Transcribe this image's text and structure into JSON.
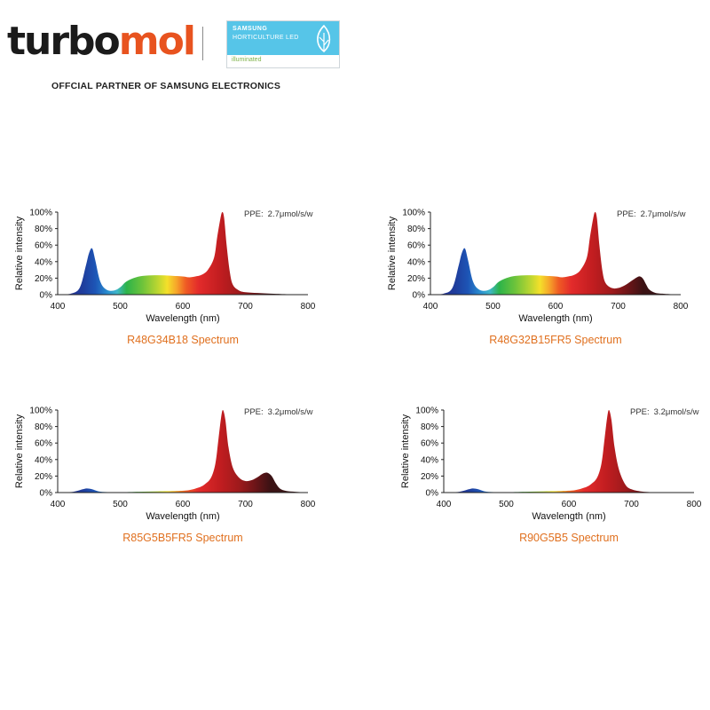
{
  "brand": {
    "name_part1": "turbo",
    "name_part2": "mol",
    "partner_text": "OFFCIAL PARTNER OF SAMSUNG ELECTRONICS"
  },
  "badge": {
    "line1": "SAMSUNG",
    "line2": "HORTICULTURE LED",
    "line3": "illuminated"
  },
  "colors": {
    "brand_dark": "#1b1b1b",
    "brand_orange": "#e8531f",
    "caption": "#e0701f",
    "badge_blue": "#56c5e8"
  },
  "chart_data": [
    {
      "type": "area",
      "caption": "R48G34B18 Spectrum",
      "ppe_label": "PPE:",
      "ppe_value": "2.7μmol/s/w",
      "xlabel": "Wavelength (nm)",
      "ylabel": "Relative intensity",
      "xlim": [
        400,
        800
      ],
      "ylim": [
        0,
        100
      ],
      "x_ticks": [
        "400",
        "500",
        "600",
        "700",
        "800"
      ],
      "y_ticks": [
        "0%",
        "20%",
        "40%",
        "60%",
        "80%",
        "100%"
      ],
      "x": [
        400,
        420,
        435,
        445,
        450,
        455,
        460,
        468,
        478,
        490,
        500,
        510,
        525,
        540,
        560,
        580,
        600,
        610,
        620,
        630,
        640,
        650,
        655,
        660,
        663,
        666,
        670,
        675,
        680,
        690,
        700,
        720,
        750,
        800
      ],
      "values": [
        0,
        1,
        8,
        35,
        50,
        56,
        42,
        16,
        6,
        5,
        9,
        16,
        21,
        23,
        23.5,
        23,
        22,
        21,
        22,
        24,
        30,
        45,
        70,
        92,
        100,
        93,
        60,
        28,
        12,
        5,
        3,
        2,
        1,
        0
      ]
    },
    {
      "type": "area",
      "caption": "R48G32B15FR5 Spectrum",
      "ppe_label": "PPE:",
      "ppe_value": "2.7μmol/s/w",
      "xlabel": "Wavelength (nm)",
      "ylabel": "Relative intensity",
      "xlim": [
        400,
        800
      ],
      "ylim": [
        0,
        100
      ],
      "x_ticks": [
        "400",
        "500",
        "600",
        "700",
        "800"
      ],
      "y_ticks": [
        "0%",
        "20%",
        "40%",
        "60%",
        "80%",
        "100%"
      ],
      "x": [
        400,
        420,
        435,
        445,
        450,
        455,
        460,
        468,
        478,
        490,
        500,
        510,
        525,
        540,
        560,
        580,
        600,
        610,
        620,
        630,
        640,
        650,
        655,
        660,
        663,
        666,
        670,
        675,
        680,
        690,
        700,
        710,
        720,
        730,
        735,
        740,
        745,
        750,
        760,
        775,
        800
      ],
      "values": [
        0,
        1,
        8,
        35,
        50,
        56,
        42,
        16,
        6,
        5,
        9,
        16,
        21,
        23,
        23.5,
        23,
        22,
        21,
        22,
        24,
        30,
        45,
        70,
        92,
        100,
        93,
        60,
        28,
        14,
        8,
        8,
        11,
        16,
        21,
        22,
        19,
        12,
        6,
        2,
        1,
        0
      ]
    },
    {
      "type": "area",
      "caption": "R85G5B5FR5 Spectrum",
      "ppe_label": "PPE:",
      "ppe_value": "3.2μmol/s/w",
      "xlabel": "Wavelength (nm)",
      "ylabel": "Relative intensity",
      "xlim": [
        400,
        800
      ],
      "ylim": [
        0,
        100
      ],
      "x_ticks": [
        "400",
        "500",
        "600",
        "700",
        "800"
      ],
      "y_ticks": [
        "0%",
        "20%",
        "40%",
        "60%",
        "80%",
        "100%"
      ],
      "x": [
        400,
        425,
        440,
        447,
        455,
        465,
        480,
        500,
        530,
        560,
        590,
        610,
        625,
        635,
        645,
        652,
        657,
        661,
        664,
        668,
        673,
        680,
        690,
        700,
        710,
        720,
        728,
        735,
        742,
        748,
        755,
        765,
        780,
        800
      ],
      "values": [
        0,
        1,
        4,
        5,
        4,
        1.5,
        0.5,
        0.5,
        1,
        1.5,
        2,
        3,
        6,
        10,
        18,
        35,
        65,
        90,
        100,
        88,
        55,
        30,
        18,
        14,
        15,
        19,
        23,
        24,
        20,
        12,
        5,
        2,
        1,
        0
      ]
    },
    {
      "type": "area",
      "caption": "R90G5B5 Spectrum",
      "ppe_label": "PPE:",
      "ppe_value": "3.2μmol/s/w",
      "xlabel": "Wavelength (nm)",
      "ylabel": "Relative intensity",
      "xlim": [
        400,
        800
      ],
      "ylim": [
        0,
        100
      ],
      "x_ticks": [
        "400",
        "500",
        "600",
        "700",
        "800"
      ],
      "y_ticks": [
        "0%",
        "20%",
        "40%",
        "60%",
        "80%",
        "100%"
      ],
      "x": [
        400,
        425,
        440,
        447,
        455,
        465,
        480,
        500,
        530,
        560,
        590,
        610,
        625,
        635,
        645,
        652,
        657,
        661,
        664,
        668,
        673,
        680,
        690,
        700,
        720,
        750,
        800
      ],
      "values": [
        0,
        1,
        4,
        5,
        4,
        1.5,
        0.5,
        0.5,
        1,
        1.5,
        2,
        3,
        6,
        10,
        18,
        35,
        65,
        90,
        100,
        88,
        55,
        28,
        10,
        4,
        1,
        0.5,
        0
      ]
    }
  ]
}
